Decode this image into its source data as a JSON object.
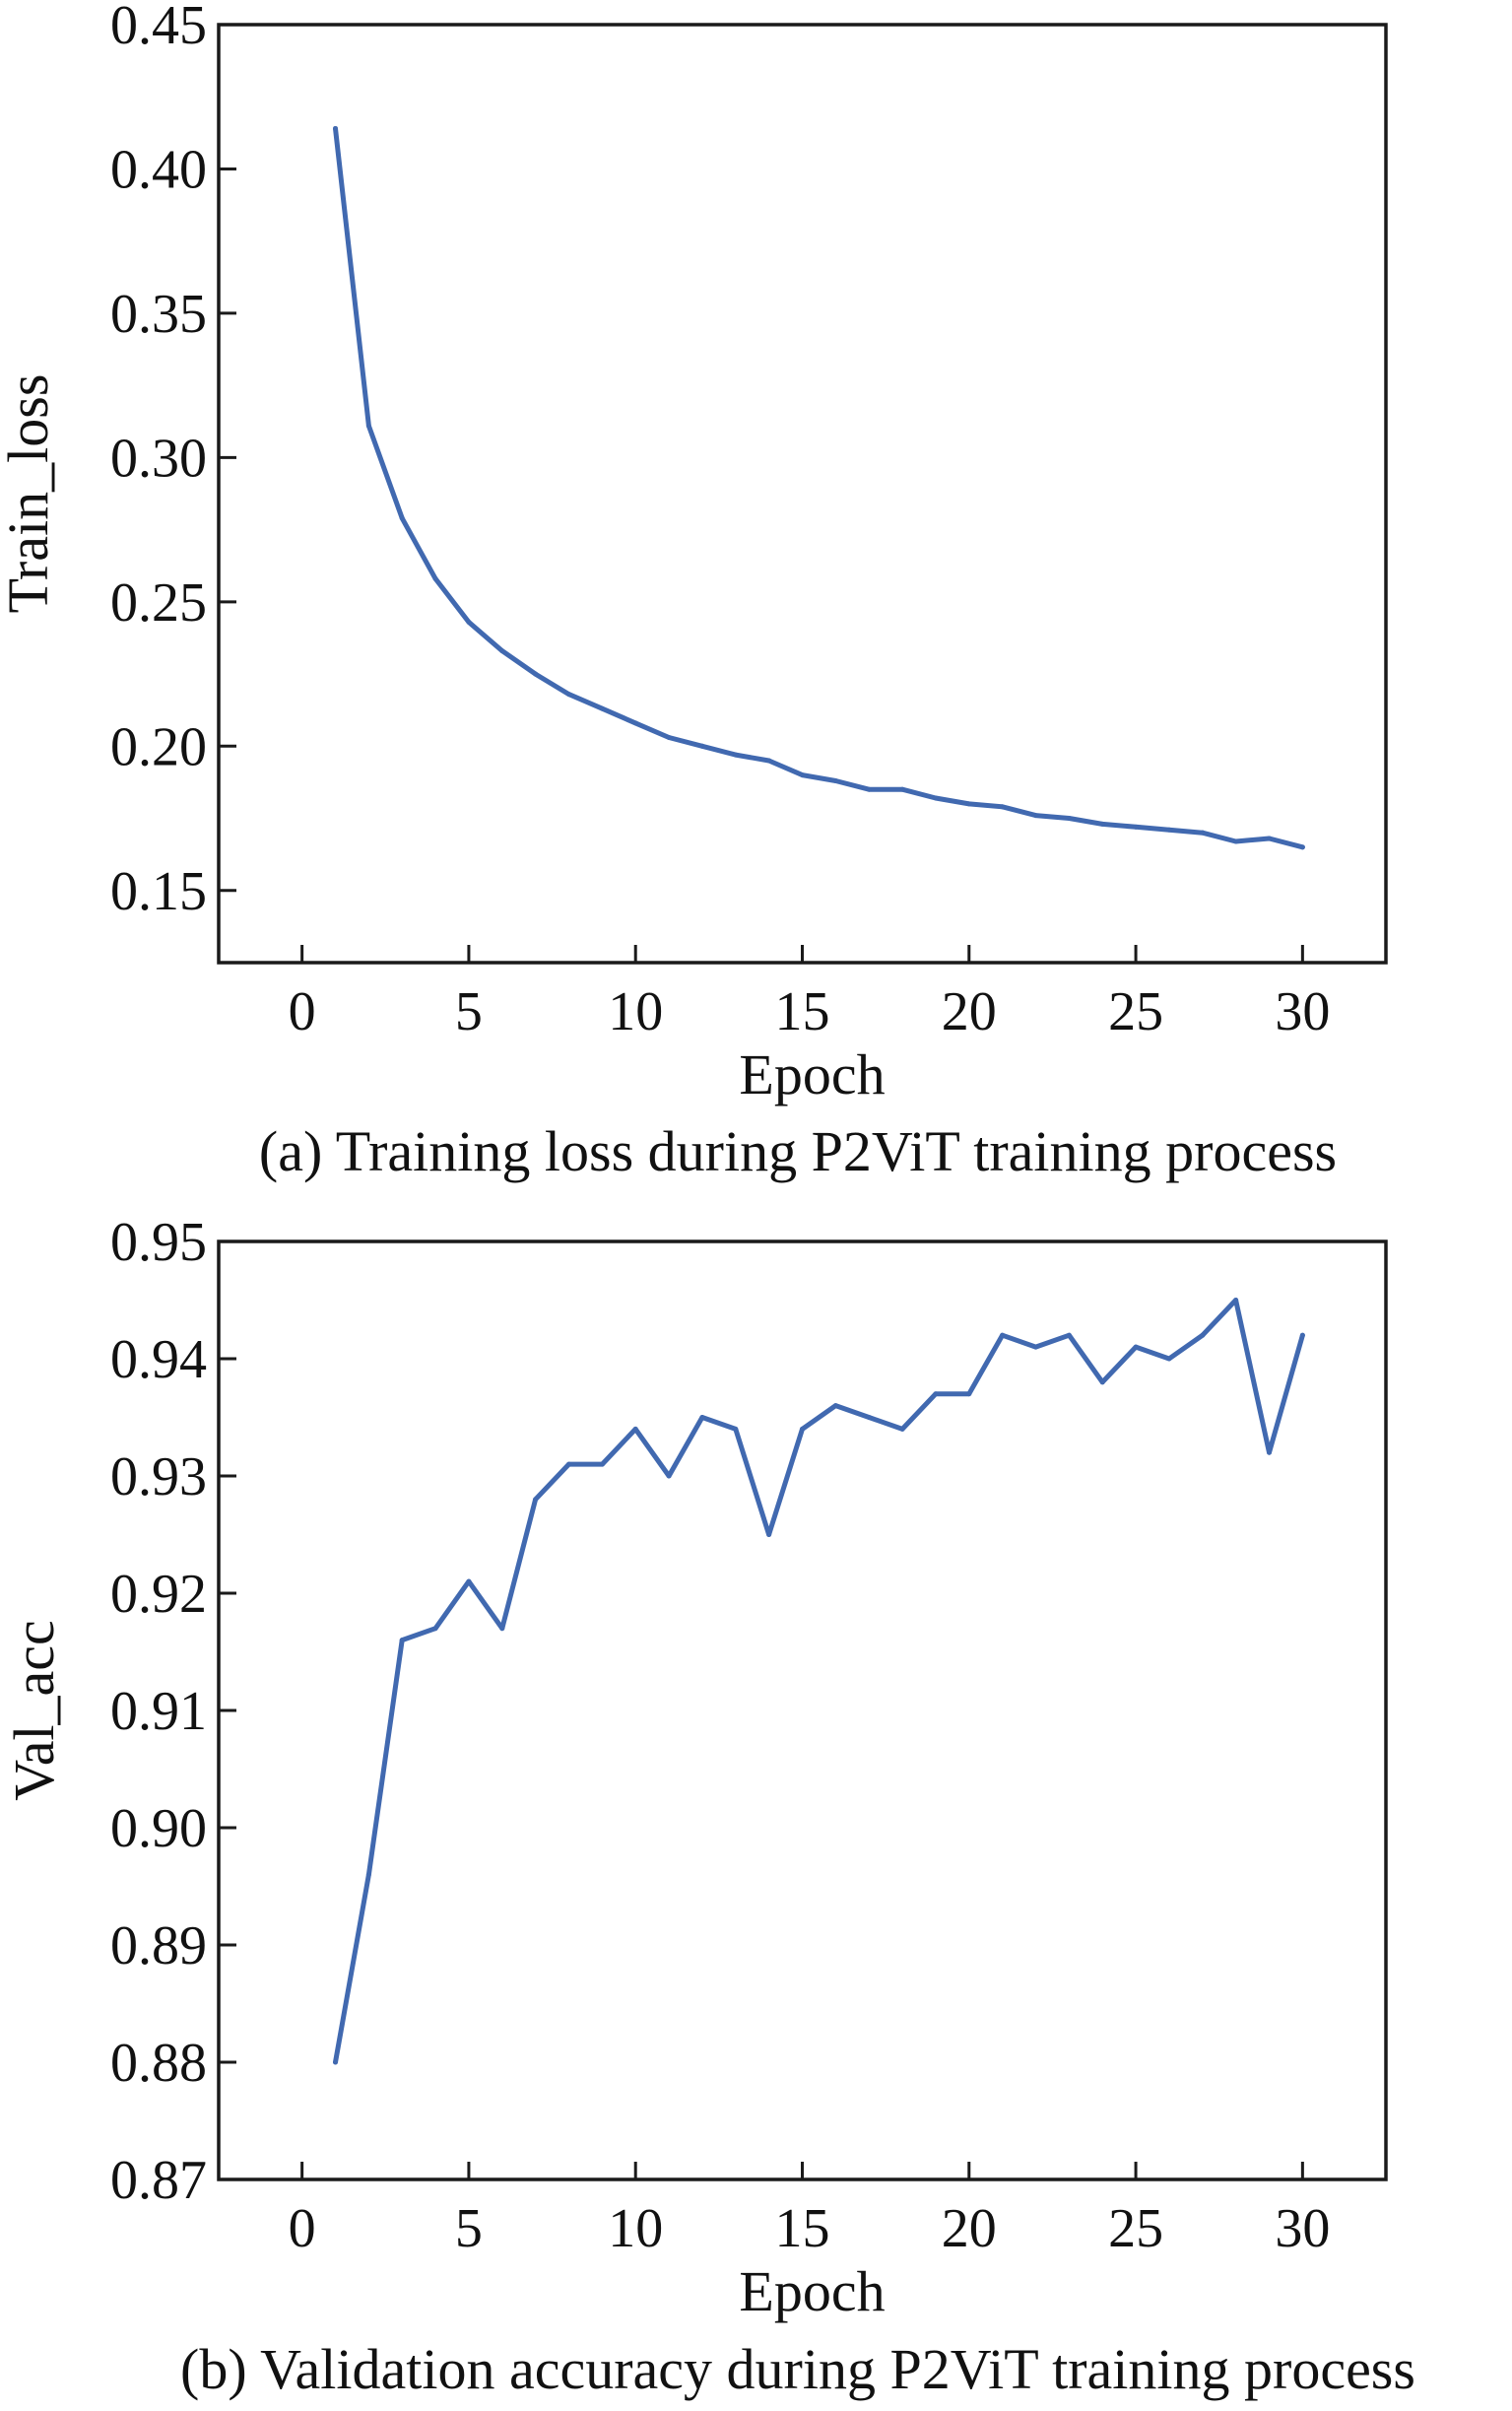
{
  "colors": {
    "line": "#4169b0",
    "axis": "#1a1a1a",
    "text": "#111111"
  },
  "chart_data": [
    {
      "type": "line",
      "caption": "(a) Training loss during P2ViT training process",
      "xlabel": "Epoch",
      "ylabel": "Train_loss",
      "xlim": [
        -2.5,
        32.5
      ],
      "ylim": [
        0.125,
        0.45
      ],
      "xticks": [
        0,
        5,
        10,
        15,
        20,
        25,
        30
      ],
      "xtick_labels": [
        "0",
        "5",
        "10",
        "15",
        "20",
        "25",
        "30"
      ],
      "yticks": [
        0.15,
        0.2,
        0.25,
        0.3,
        0.35,
        0.4,
        0.45
      ],
      "ytick_labels": [
        "0.15",
        "0.20",
        "0.25",
        "0.30",
        "0.35",
        "0.40",
        "0.45"
      ],
      "grid": false,
      "x": [
        1,
        2,
        3,
        4,
        5,
        6,
        7,
        8,
        9,
        10,
        11,
        12,
        13,
        14,
        15,
        16,
        17,
        18,
        19,
        20,
        21,
        22,
        23,
        24,
        25,
        26,
        27,
        28,
        29,
        30
      ],
      "values": [
        0.414,
        0.311,
        0.279,
        0.258,
        0.243,
        0.233,
        0.225,
        0.218,
        0.213,
        0.208,
        0.203,
        0.2,
        0.197,
        0.195,
        0.19,
        0.188,
        0.185,
        0.185,
        0.182,
        0.18,
        0.179,
        0.176,
        0.175,
        0.173,
        0.172,
        0.171,
        0.17,
        0.167,
        0.168,
        0.165
      ]
    },
    {
      "type": "line",
      "caption": "(b) Validation accuracy during P2ViT training process",
      "xlabel": "Epoch",
      "ylabel": "Val_acc",
      "xlim": [
        -2.5,
        32.5
      ],
      "ylim": [
        0.87,
        0.95
      ],
      "xticks": [
        0,
        5,
        10,
        15,
        20,
        25,
        30
      ],
      "xtick_labels": [
        "0",
        "5",
        "10",
        "15",
        "20",
        "25",
        "30"
      ],
      "yticks": [
        0.87,
        0.88,
        0.89,
        0.9,
        0.91,
        0.92,
        0.93,
        0.94,
        0.95
      ],
      "ytick_labels": [
        "0.87",
        "0.88",
        "0.89",
        "0.90",
        "0.91",
        "0.92",
        "0.93",
        "0.94",
        "0.95"
      ],
      "grid": false,
      "x": [
        1,
        2,
        3,
        4,
        5,
        6,
        7,
        8,
        9,
        10,
        11,
        12,
        13,
        14,
        15,
        16,
        17,
        18,
        19,
        20,
        21,
        22,
        23,
        24,
        25,
        26,
        27,
        28,
        29,
        30
      ],
      "values": [
        0.88,
        0.896,
        0.916,
        0.917,
        0.921,
        0.917,
        0.928,
        0.931,
        0.931,
        0.934,
        0.93,
        0.935,
        0.934,
        0.925,
        0.934,
        0.936,
        0.935,
        0.934,
        0.937,
        0.937,
        0.942,
        0.941,
        0.942,
        0.938,
        0.941,
        0.94,
        0.942,
        0.945,
        0.932,
        0.942
      ]
    }
  ]
}
